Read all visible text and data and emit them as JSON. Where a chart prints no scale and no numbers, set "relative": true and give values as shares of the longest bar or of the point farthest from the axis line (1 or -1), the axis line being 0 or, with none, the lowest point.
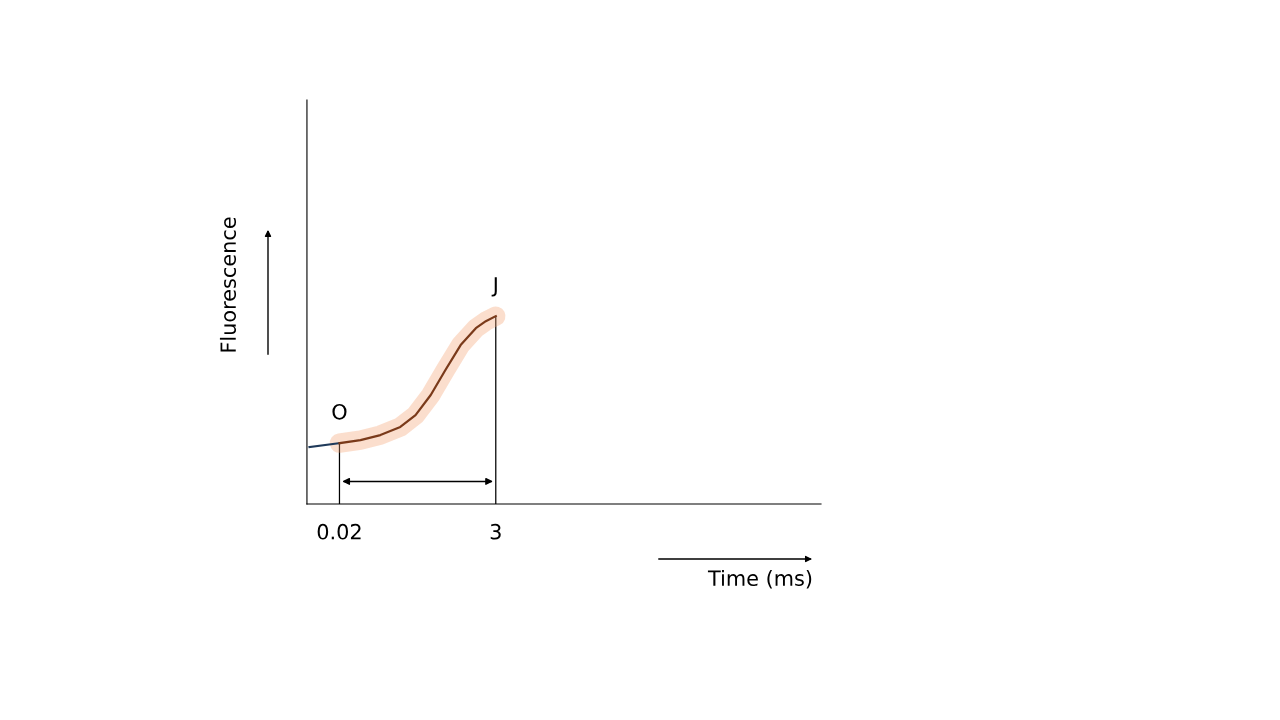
{
  "chart_data": {
    "type": "line",
    "relative": true,
    "xlabel": "Time (ms)",
    "ylabel": "Fluorescence",
    "xlim": [
      -0.6,
      9.2
    ],
    "xticks": [
      0.02,
      3
    ],
    "tick_labels": "x",
    "grid": false,
    "marker": "none",
    "line_style": "solid",
    "series": [
      {
        "color": "#1f3a5a",
        "x": [
          -0.55,
          0.02
        ],
        "values": [
          0.303,
          0.324
        ]
      },
      {
        "color": "#7a3a1a",
        "x": [
          0.02,
          0.42,
          0.8,
          1.18,
          1.47,
          1.76,
          2.04,
          2.33,
          2.62,
          2.81,
          3.0
        ],
        "values": [
          0.324,
          0.34,
          0.367,
          0.41,
          0.473,
          0.58,
          0.713,
          0.846,
          0.936,
          0.973,
          1.0
        ]
      }
    ],
    "ref_lines": [
      {
        "axis": "x",
        "value": 0.02,
        "color": "#000000"
      },
      {
        "axis": "x",
        "value": 3,
        "color": "#000000"
      }
    ],
    "annotations": [
      {
        "text": "O",
        "x": 0.02,
        "y": 0.324
      },
      {
        "text": "J",
        "x": 3,
        "y": 1.0
      }
    ]
  }
}
